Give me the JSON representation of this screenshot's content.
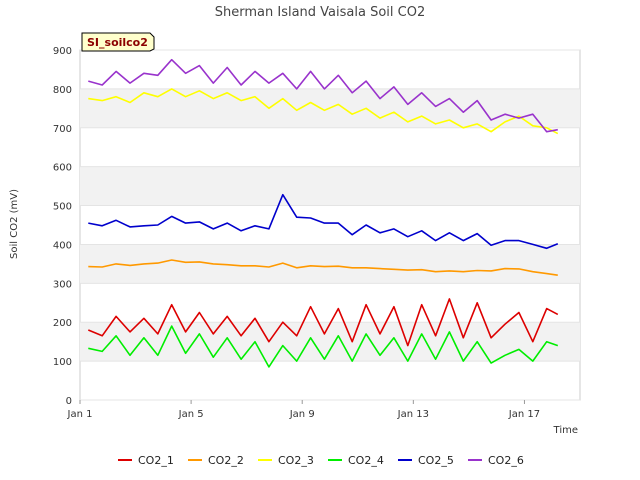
{
  "chart_data": {
    "type": "line",
    "title": "Sherman Island Vaisala Soil CO2",
    "xlabel": "Time",
    "ylabel": "Soil CO2 (mV)",
    "tag": "SI_soilco2",
    "xlim": [
      "Jan 1",
      "Jan 19"
    ],
    "ylim": [
      0,
      900
    ],
    "yticks": [
      0,
      100,
      200,
      300,
      400,
      500,
      600,
      700,
      800,
      900
    ],
    "xticks": [
      "Jan 1",
      "Jan 5",
      "Jan 9",
      "Jan 13",
      "Jan 17"
    ],
    "xtick_days": [
      1,
      5,
      9,
      13,
      17
    ],
    "grid": true,
    "legend_position": "bottom",
    "x_unit": "day of January",
    "x": [
      1.3,
      1.8,
      2.3,
      2.8,
      3.3,
      3.8,
      4.3,
      4.8,
      5.3,
      5.8,
      6.3,
      6.8,
      7.3,
      7.8,
      8.3,
      8.8,
      9.3,
      9.8,
      10.3,
      10.8,
      11.3,
      11.8,
      12.3,
      12.8,
      13.3,
      13.8,
      14.3,
      14.8,
      15.3,
      15.8,
      16.3,
      16.8,
      17.3,
      17.8,
      18.2
    ],
    "series": [
      {
        "name": "CO2_1",
        "color": "#dd0000",
        "values": [
          180,
          165,
          215,
          175,
          210,
          170,
          245,
          175,
          225,
          170,
          215,
          165,
          210,
          150,
          200,
          165,
          240,
          170,
          235,
          150,
          245,
          170,
          240,
          140,
          245,
          165,
          260,
          160,
          250,
          160,
          195,
          225,
          150,
          235,
          220
        ]
      },
      {
        "name": "CO2_2",
        "color": "#ff9900",
        "values": [
          343,
          342,
          350,
          346,
          350,
          352,
          360,
          354,
          355,
          350,
          348,
          345,
          345,
          342,
          352,
          340,
          345,
          343,
          344,
          340,
          340,
          338,
          336,
          334,
          335,
          330,
          332,
          330,
          333,
          332,
          338,
          337,
          330,
          325,
          321
        ]
      },
      {
        "name": "CO2_3",
        "color": "#ffff00",
        "values": [
          775,
          770,
          780,
          765,
          790,
          780,
          800,
          780,
          795,
          775,
          790,
          770,
          780,
          750,
          775,
          745,
          765,
          745,
          760,
          735,
          750,
          725,
          740,
          715,
          730,
          710,
          720,
          700,
          710,
          690,
          715,
          730,
          705,
          700,
          685
        ]
      },
      {
        "name": "CO2_4",
        "color": "#00ee00",
        "values": [
          133,
          125,
          165,
          115,
          160,
          115,
          190,
          120,
          170,
          110,
          160,
          105,
          150,
          85,
          140,
          100,
          160,
          105,
          165,
          100,
          170,
          115,
          160,
          100,
          170,
          105,
          175,
          100,
          150,
          95,
          115,
          130,
          100,
          150,
          140
        ]
      },
      {
        "name": "CO2_5",
        "color": "#0000cc",
        "values": [
          455,
          448,
          462,
          445,
          448,
          450,
          472,
          455,
          458,
          440,
          455,
          435,
          448,
          440,
          528,
          470,
          468,
          455,
          455,
          425,
          450,
          430,
          440,
          420,
          435,
          410,
          430,
          410,
          428,
          398,
          410,
          410,
          400,
          390,
          402
        ]
      },
      {
        "name": "CO2_6",
        "color": "#9933cc",
        "values": [
          820,
          810,
          845,
          815,
          840,
          835,
          875,
          840,
          860,
          815,
          855,
          810,
          845,
          815,
          840,
          800,
          845,
          800,
          835,
          790,
          820,
          775,
          805,
          760,
          790,
          755,
          775,
          740,
          770,
          720,
          735,
          725,
          735,
          690,
          695
        ]
      }
    ]
  }
}
